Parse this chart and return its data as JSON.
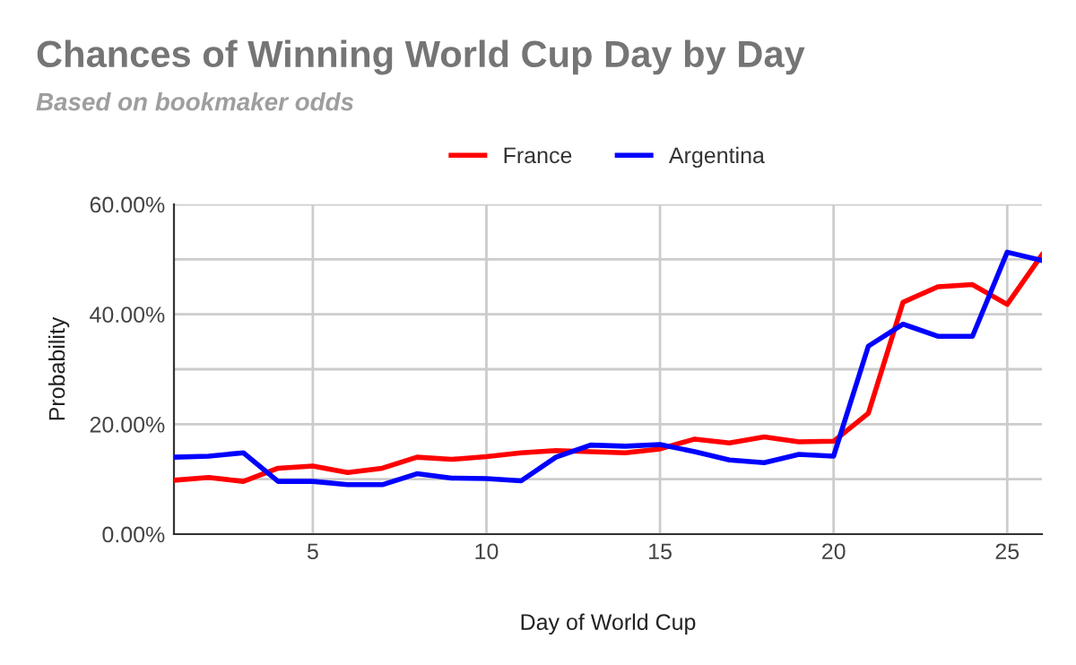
{
  "chart_data": {
    "type": "line",
    "title": "Chances of Winning World Cup Day by Day",
    "subtitle": "Based on bookmaker odds",
    "xlabel": "Day of World Cup",
    "ylabel": "Probability",
    "x": [
      1,
      2,
      3,
      4,
      5,
      6,
      7,
      8,
      9,
      10,
      11,
      12,
      13,
      14,
      15,
      16,
      17,
      18,
      19,
      20,
      21,
      22,
      23,
      24,
      25,
      26
    ],
    "series": [
      {
        "name": "France",
        "color": "#ff0000",
        "values": [
          9.8,
          10.3,
          9.6,
          12.0,
          12.4,
          11.2,
          12.0,
          14.0,
          13.6,
          14.1,
          14.8,
          15.2,
          15.0,
          14.8,
          15.5,
          17.3,
          16.6,
          17.7,
          16.8,
          16.9,
          22.0,
          42.2,
          45.0,
          45.4,
          41.8,
          50.8
        ]
      },
      {
        "name": "Argentina",
        "color": "#0000ff",
        "values": [
          14.0,
          14.2,
          14.8,
          9.6,
          9.6,
          9.0,
          9.0,
          11.0,
          10.2,
          10.1,
          9.7,
          14.0,
          16.2,
          16.0,
          16.3,
          15.0,
          13.5,
          13.0,
          14.5,
          14.2,
          34.2,
          38.2,
          36.0,
          36.0,
          51.3,
          49.8
        ]
      }
    ],
    "xlim": [
      1,
      26
    ],
    "xticks": [
      5,
      10,
      15,
      20,
      25
    ],
    "ylim": [
      0,
      60
    ],
    "yticks": [
      {
        "value": 0,
        "label": "0.00%"
      },
      {
        "value": 10,
        "label": null
      },
      {
        "value": 20,
        "label": "20.00%"
      },
      {
        "value": 30,
        "label": null
      },
      {
        "value": 40,
        "label": "40.00%"
      },
      {
        "value": 50,
        "label": null
      },
      {
        "value": 60,
        "label": "60.00%"
      }
    ],
    "grid": true,
    "legend": "top",
    "marker": "none",
    "line_style": "solid"
  }
}
